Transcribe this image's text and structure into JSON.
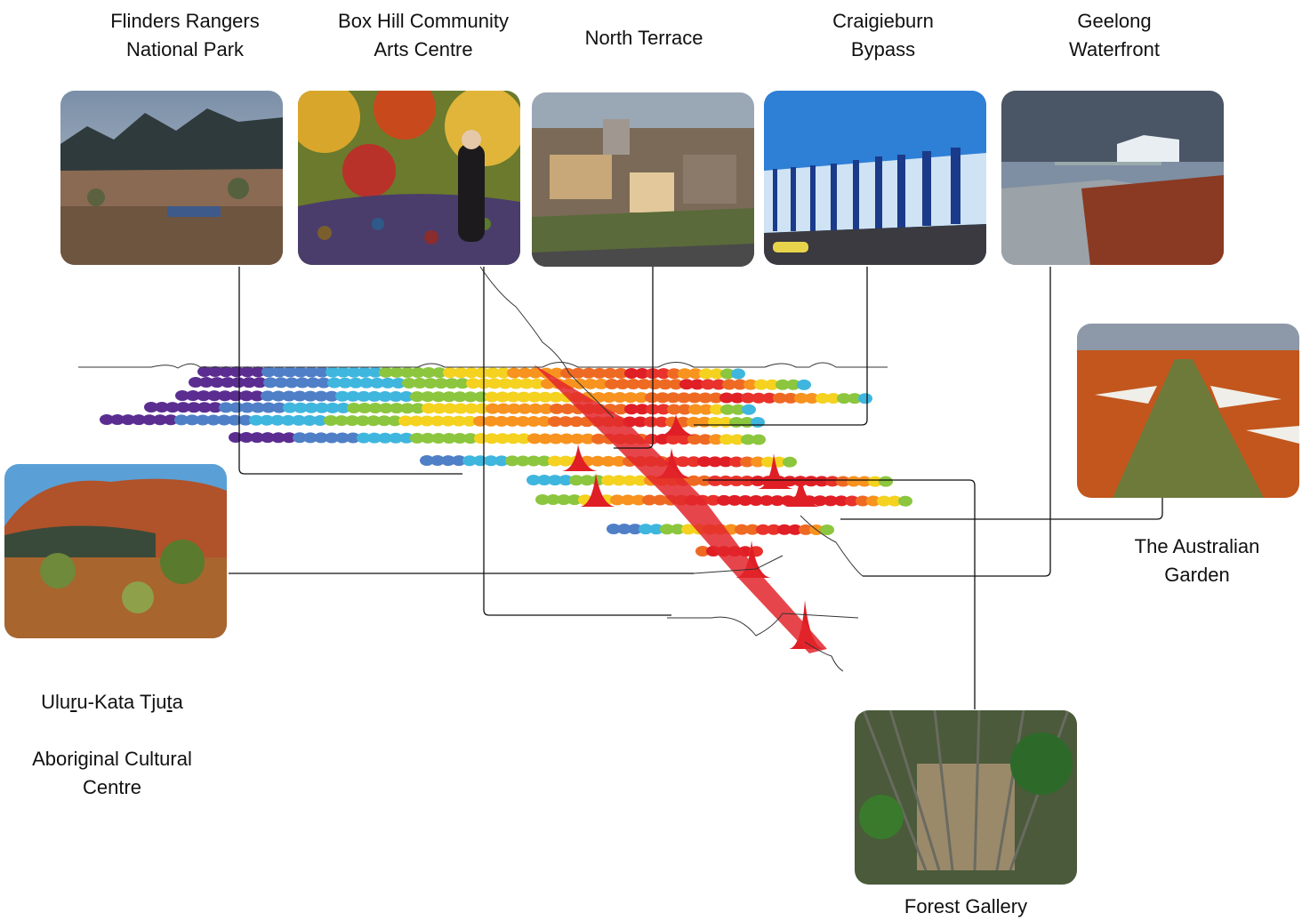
{
  "projects": [
    {
      "id": "flinders",
      "label": "Flinders Rangers\nNational Park"
    },
    {
      "id": "boxhill",
      "label": "Box Hill Community\nArts Centre"
    },
    {
      "id": "northterrace",
      "label": "North Terrace"
    },
    {
      "id": "craigieburn",
      "label": "Craigieburn\nBypass"
    },
    {
      "id": "geelong",
      "label": "Geelong\nWaterfront"
    },
    {
      "id": "australiangarden",
      "label": "The Australian\nGarden"
    },
    {
      "id": "uluru",
      "label_line1_a": "Ulu",
      "label_line1_u1": "r",
      "label_line1_b": "u-Kata Tju",
      "label_line1_u2": "t",
      "label_line1_c": "a",
      "label_rest": "Aboriginal Cultural\nCentre"
    },
    {
      "id": "forestgallery",
      "label": "Forest Gallery"
    }
  ],
  "palette": [
    "#5b2d91",
    "#4f7fc6",
    "#3fb6de",
    "#8cc63e",
    "#f4d21f",
    "#f7931e",
    "#ee6a23",
    "#e8322b",
    "#e01e25"
  ]
}
